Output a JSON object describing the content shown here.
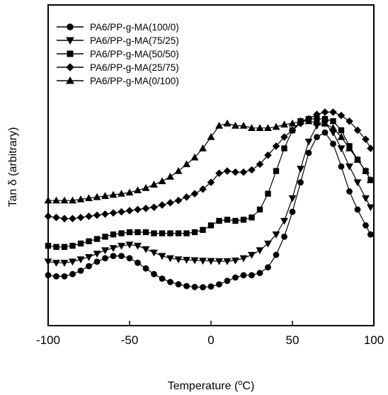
{
  "chart_data": {
    "type": "line",
    "title": "",
    "xlabel": "Temperature (°C)",
    "xlabel_parts": {
      "prefix": "Temperature (",
      "sup": "o",
      "suffix": "C)"
    },
    "ylabel": "Tan δ (arbitrary)",
    "xlim": [
      -100,
      100
    ],
    "x_ticks": [
      -100,
      -50,
      0,
      50,
      100
    ],
    "x_tick_labels": [
      "-100",
      "-50",
      "0",
      "50",
      "100"
    ],
    "y_ticks_labeled": false,
    "ylim": [
      0,
      1
    ],
    "grid": false,
    "legend_position": "top-left",
    "x": [
      -100,
      -95,
      -90,
      -85,
      -80,
      -75,
      -70,
      -65,
      -60,
      -55,
      -50,
      -45,
      -40,
      -35,
      -30,
      -25,
      -20,
      -15,
      -10,
      -5,
      0,
      5,
      10,
      15,
      20,
      25,
      30,
      35,
      40,
      45,
      50,
      55,
      60,
      65,
      70,
      75,
      80,
      85,
      90,
      95,
      98
    ],
    "series": [
      {
        "name": "PA6/PP-g-MA(100/0)",
        "marker": "circle",
        "color": "#000000",
        "values": [
          0.16,
          0.155,
          0.155,
          0.165,
          0.18,
          0.2,
          0.22,
          0.235,
          0.245,
          0.245,
          0.235,
          0.215,
          0.19,
          0.165,
          0.145,
          0.13,
          0.12,
          0.112,
          0.108,
          0.107,
          0.11,
          0.12,
          0.135,
          0.15,
          0.16,
          0.16,
          0.17,
          0.195,
          0.25,
          0.33,
          0.44,
          0.57,
          0.7,
          0.77,
          0.79,
          0.74,
          0.64,
          0.53,
          0.45,
          0.38,
          0.34
        ]
      },
      {
        "name": "PA6/PP-g-MA(75/25)",
        "marker": "triangle-down",
        "color": "#000000",
        "values": [
          0.22,
          0.215,
          0.215,
          0.22,
          0.23,
          0.24,
          0.255,
          0.27,
          0.28,
          0.29,
          0.295,
          0.29,
          0.275,
          0.26,
          0.245,
          0.235,
          0.23,
          0.228,
          0.226,
          0.224,
          0.223,
          0.222,
          0.222,
          0.225,
          0.235,
          0.25,
          0.27,
          0.3,
          0.34,
          0.4,
          0.5,
          0.63,
          0.75,
          0.82,
          0.83,
          0.79,
          0.72,
          0.64,
          0.57,
          0.5,
          0.46
        ]
      },
      {
        "name": "PA6/PP-g-MA(50/50)",
        "marker": "square",
        "color": "#000000",
        "values": [
          0.29,
          0.285,
          0.285,
          0.29,
          0.3,
          0.31,
          0.32,
          0.33,
          0.34,
          0.345,
          0.35,
          0.35,
          0.35,
          0.345,
          0.345,
          0.345,
          0.345,
          0.345,
          0.35,
          0.36,
          0.38,
          0.4,
          0.405,
          0.4,
          0.405,
          0.415,
          0.45,
          0.52,
          0.62,
          0.72,
          0.8,
          0.84,
          0.85,
          0.85,
          0.85,
          0.84,
          0.8,
          0.73,
          0.67,
          0.62,
          0.58
        ]
      },
      {
        "name": "PA6/PP-g-MA(25/75)",
        "marker": "diamond",
        "color": "#000000",
        "values": [
          0.42,
          0.415,
          0.41,
          0.41,
          0.415,
          0.42,
          0.425,
          0.43,
          0.435,
          0.44,
          0.445,
          0.45,
          0.455,
          0.46,
          0.47,
          0.48,
          0.49,
          0.505,
          0.52,
          0.54,
          0.57,
          0.61,
          0.62,
          0.615,
          0.615,
          0.625,
          0.65,
          0.69,
          0.73,
          0.77,
          0.8,
          0.83,
          0.85,
          0.87,
          0.88,
          0.88,
          0.865,
          0.84,
          0.8,
          0.76,
          0.72
        ]
      },
      {
        "name": "PA6/PP-g-MA(0/100)",
        "marker": "triangle-up",
        "color": "#000000",
        "values": [
          0.49,
          0.49,
          0.49,
          0.49,
          0.495,
          0.5,
          0.505,
          0.51,
          0.515,
          0.52,
          0.525,
          0.535,
          0.545,
          0.56,
          0.575,
          0.595,
          0.62,
          0.65,
          0.68,
          0.72,
          0.77,
          0.82,
          0.83,
          0.82,
          0.82,
          0.81,
          0.81,
          0.81,
          0.815,
          0.825,
          0.83,
          0.84,
          0.84,
          0.835,
          0.83,
          0.81,
          0.77,
          0.72,
          0.67,
          0.62,
          0.58
        ]
      }
    ]
  }
}
